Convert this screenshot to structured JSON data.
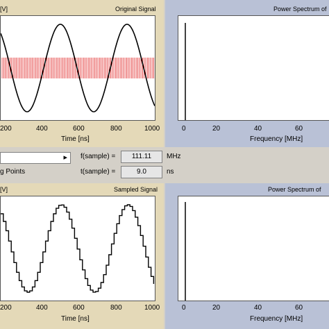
{
  "top_left": {
    "title": "Original Signal",
    "corner_label": "[V]",
    "x_ticks": [
      "200",
      "400",
      "600",
      "800",
      "1000"
    ],
    "x_label": "Time [ns]"
  },
  "top_right": {
    "title": "Power Spectrum of",
    "x_ticks": [
      "0",
      "20",
      "40",
      "60"
    ],
    "x_label": "Frequency [MHz]"
  },
  "controls": {
    "f_sample_label": "f(sample) =",
    "f_sample_value": "111.11",
    "f_sample_unit": "MHz",
    "t_sample_label": "t(sample) =",
    "t_sample_value": "9.0",
    "t_sample_unit": "ns",
    "points_label": "g Points",
    "dropdown_arrow": "▸"
  },
  "bottom_left": {
    "title": "Sampled Signal",
    "corner_label": "[V]",
    "x_ticks": [
      "200",
      "400",
      "600",
      "800",
      "1000"
    ],
    "x_label": "Time [ns]"
  },
  "bottom_right": {
    "title": "Power Spectrum of",
    "x_ticks": [
      "0",
      "20",
      "40",
      "60"
    ],
    "x_label": "Frequency [MHz]"
  },
  "colors": {
    "sample_markers": "#e02020",
    "trace": "#000000"
  }
}
